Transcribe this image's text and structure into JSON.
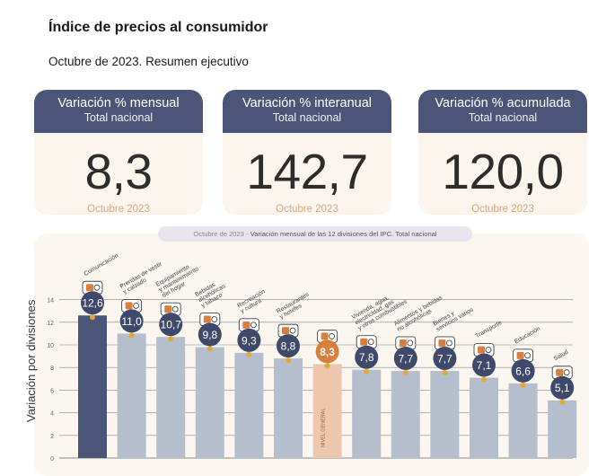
{
  "header": {
    "title": "Índice de precios al consumidor",
    "subtitle": "Octubre de 2023. Resumen ejecutivo"
  },
  "cards": [
    {
      "heading": "Variación % mensual",
      "subheading": "Total nacional",
      "value": "8,3",
      "period": "Octubre 2023"
    },
    {
      "heading": "Variación % interanual",
      "subheading": "Total nacional",
      "value": "142,7",
      "period": "Octubre 2023"
    },
    {
      "heading": "Variación % acumulada",
      "subheading": "Total nacional",
      "value": "120,0",
      "period": "Octubre 2023"
    }
  ],
  "chart_data": {
    "type": "bar",
    "title_lead": "Octubre de 2023 -",
    "title": "Variación mensual de las 12 divisiones del IPC. Total nacional",
    "ylabel": "Variación por divisiones",
    "ylim": [
      0,
      14
    ],
    "yticks": [
      "0",
      "2",
      "4",
      "6",
      "8",
      "10",
      "12",
      "14"
    ],
    "categories": [
      "Comunicación",
      "Prendas de vestir y calzado",
      "Equipamiento y mantenimiento del hogar",
      "Bebidas alcohólicas y tabaco",
      "Recreación y cultura",
      "Restaurantes y hoteles",
      "NIVEL GENERAL",
      "Vivienda, agua, electricidad, gas y otros combustibles",
      "Alimentos y bebidas no alcohólicas",
      "Bienes y servicios varios",
      "Transporte",
      "Educación",
      "Salud"
    ],
    "labels": [
      "12,6",
      "11,0",
      "10,7",
      "9,8",
      "9,3",
      "8,8",
      "8,3",
      "7,8",
      "7,7",
      "7,7",
      "7,1",
      "6,6",
      "5,1"
    ],
    "values": [
      12.6,
      11.0,
      10.7,
      9.8,
      9.3,
      8.8,
      8.3,
      7.8,
      7.7,
      7.7,
      7.1,
      6.6,
      5.1
    ],
    "icons": [
      "phone-icon",
      "shirt-icon",
      "appliance-icon",
      "bottle-icon",
      "recreation-icon",
      "dining-icon",
      "basket-icon",
      "lightbulb-icon",
      "chicken-icon",
      "scissors-icon",
      "car-icon",
      "book-icon",
      "first-aid-icon"
    ],
    "colors": {
      "bar": "#b5becc",
      "bar_highlight": "#4b5577",
      "bar_general": "#edc7ad",
      "marker": "#e4a835",
      "bubble": "#3f4a6b",
      "bubble_general": "#d77f3c",
      "grid": "#8a8a8a"
    }
  }
}
